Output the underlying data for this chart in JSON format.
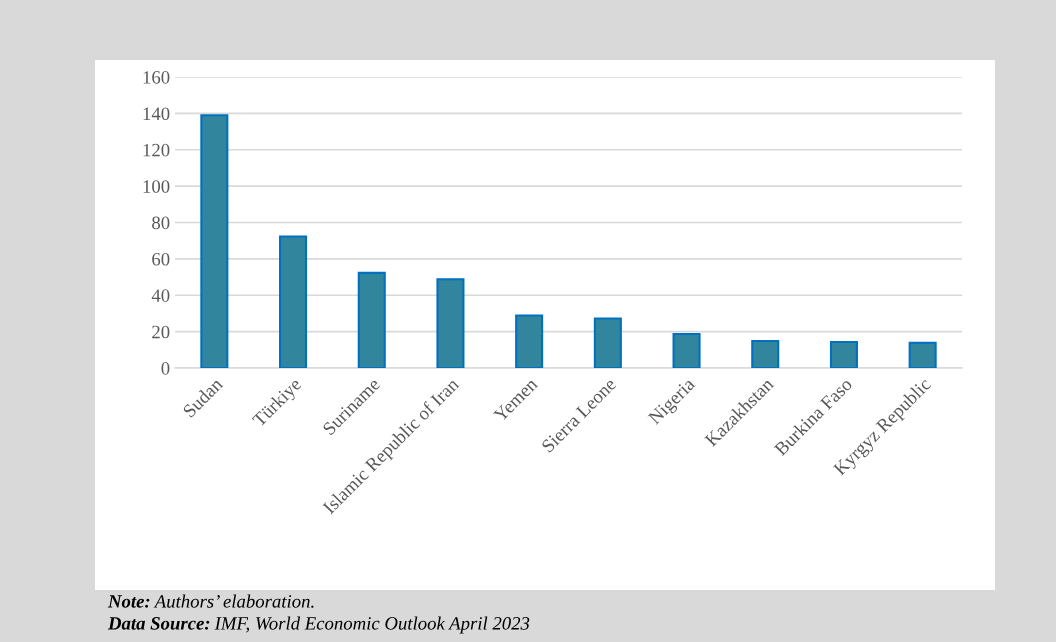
{
  "chart_data": {
    "type": "bar",
    "categories": [
      "Sudan",
      "Türkiye",
      "Suriname",
      "Islamic Republic of Iran",
      "Yemen",
      "Sierra Leone",
      "Nigeria",
      "Kazakhstan",
      "Burkina Faso",
      "Kyrgyz Republic"
    ],
    "values": [
      139,
      72.3,
      52.3,
      48.8,
      28.9,
      27.2,
      18.7,
      14.8,
      14.3,
      13.9
    ],
    "color": "#31859c",
    "ylim": [
      0,
      160
    ],
    "yticks": [
      0,
      20,
      40,
      60,
      80,
      100,
      120,
      140,
      160
    ],
    "grid": "y",
    "annotations": [
      "Note: Authors’ elaboration.",
      "Data Source: IMF, World Economic Outlook April 2023"
    ]
  }
}
